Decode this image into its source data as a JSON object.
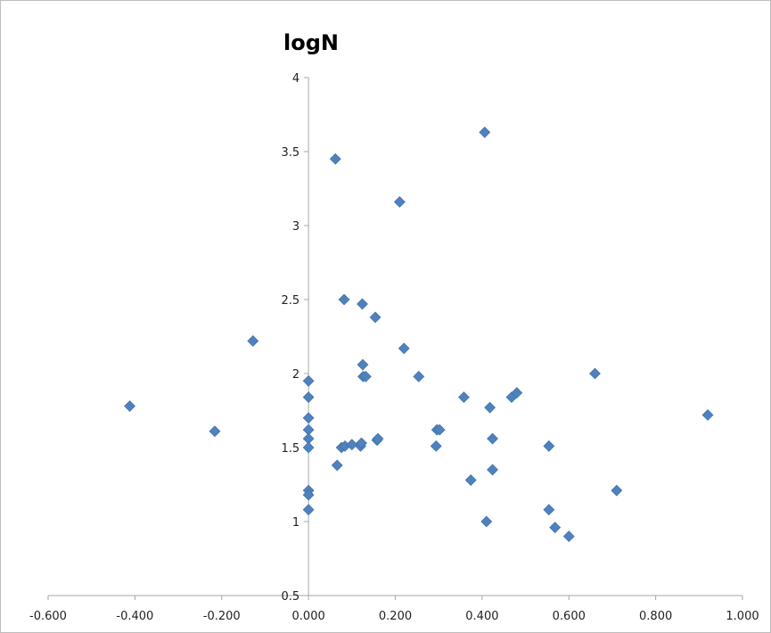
{
  "chart_data": {
    "type": "scatter",
    "title": "logN",
    "xlabel": "",
    "ylabel": "",
    "xlim": [
      -0.6,
      1.0
    ],
    "ylim": [
      0.5,
      4
    ],
    "x_ticks": [
      -0.6,
      -0.4,
      -0.2,
      0.0,
      0.2,
      0.4,
      0.6,
      0.8,
      1.0
    ],
    "x_tick_labels": [
      "-0.600",
      "-0.400",
      "-0.200",
      "0.000",
      "0.200",
      "0.400",
      "0.600",
      "0.800",
      "1.000"
    ],
    "y_ticks": [
      0.5,
      1,
      1.5,
      2,
      2.5,
      3,
      3.5,
      4
    ],
    "y_tick_labels": [
      "0.5",
      "1",
      "1.5",
      "2",
      "2.5",
      "3",
      "3.5",
      "4"
    ],
    "grid": false,
    "marker": "diamond",
    "marker_color": "#4f81bd",
    "axis_color": "#a6a6a6",
    "series": [
      {
        "points": [
          [
            -0.412,
            1.78
          ],
          [
            -0.216,
            1.61
          ],
          [
            -0.128,
            2.22
          ],
          [
            0.0,
            1.95
          ],
          [
            0.0,
            1.84
          ],
          [
            0.0,
            1.7
          ],
          [
            0.0,
            1.62
          ],
          [
            0.0,
            1.56
          ],
          [
            0.0,
            1.5
          ],
          [
            0.0,
            1.21
          ],
          [
            0.0,
            1.18
          ],
          [
            0.0,
            1.08
          ],
          [
            0.062,
            3.45
          ],
          [
            0.066,
            1.38
          ],
          [
            0.076,
            1.5
          ],
          [
            0.082,
            2.5
          ],
          [
            0.084,
            1.51
          ],
          [
            0.1,
            1.52
          ],
          [
            0.12,
            1.51
          ],
          [
            0.122,
            1.53
          ],
          [
            0.124,
            2.47
          ],
          [
            0.125,
            2.06
          ],
          [
            0.126,
            1.98
          ],
          [
            0.132,
            1.98
          ],
          [
            0.154,
            2.38
          ],
          [
            0.158,
            1.55
          ],
          [
            0.16,
            1.56
          ],
          [
            0.21,
            3.16
          ],
          [
            0.22,
            2.17
          ],
          [
            0.254,
            1.98
          ],
          [
            0.294,
            1.51
          ],
          [
            0.296,
            1.62
          ],
          [
            0.302,
            1.62
          ],
          [
            0.358,
            1.84
          ],
          [
            0.374,
            1.28
          ],
          [
            0.406,
            3.63
          ],
          [
            0.41,
            1.0
          ],
          [
            0.418,
            1.77
          ],
          [
            0.424,
            1.35
          ],
          [
            0.424,
            1.56
          ],
          [
            0.468,
            1.84
          ],
          [
            0.48,
            1.87
          ],
          [
            0.554,
            1.08
          ],
          [
            0.554,
            1.51
          ],
          [
            0.568,
            0.96
          ],
          [
            0.6,
            0.9
          ],
          [
            0.66,
            2.0
          ],
          [
            0.71,
            1.21
          ],
          [
            0.92,
            1.72
          ]
        ]
      }
    ]
  }
}
